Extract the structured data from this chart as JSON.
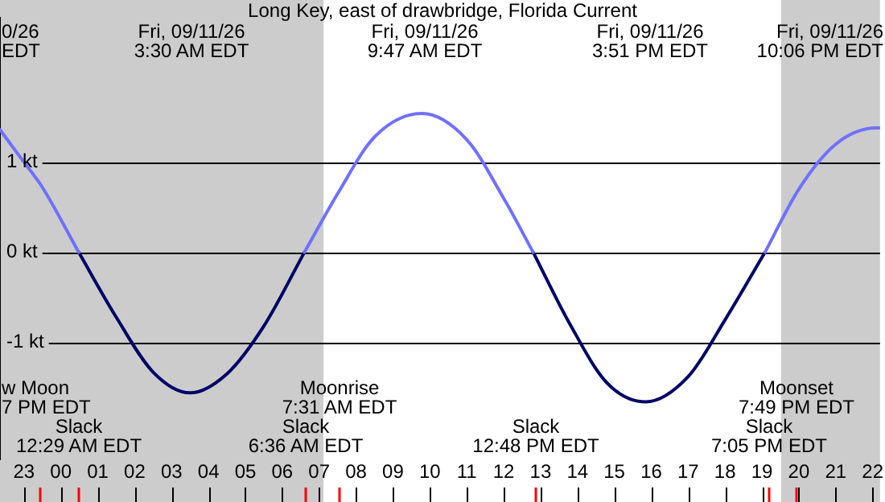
{
  "chart_data": {
    "type": "line",
    "title": "Long Key, east of drawbridge, Florida Current",
    "x": [
      "--09-10T22:21",
      "--09-10T23:00",
      "--09-10T23:30",
      "--09-11T00:29",
      "--09-11T01:30",
      "--09-11T02:30",
      "--09-11T03:30",
      "--09-11T04:30",
      "--09-11T05:30",
      "--09-11T06:36",
      "--09-11T07:30",
      "--09-11T08:30",
      "--09-11T09:47",
      "--09-11T11:00",
      "--09-11T12:00",
      "--09-11T12:48",
      "--09-11T13:48",
      "--09-11T14:48",
      "--09-11T15:51",
      "--09-11T17:00",
      "--09-11T18:00",
      "--09-11T19:05",
      "--09-11T20:00",
      "--09-11T21:00",
      "--09-11T22:06",
      "--09-11T22:12"
    ],
    "series": [
      {
        "color": "#7070ff",
        "values": [
          1.36,
          1.0,
          0.72,
          0,
          null,
          null,
          null,
          null,
          null,
          0,
          0.65,
          1.28,
          1.54,
          1.25,
          0.6,
          0,
          null,
          null,
          null,
          null,
          null,
          0,
          0.7,
          1.2,
          1.38,
          1.38
        ]
      },
      {
        "color": "#000066",
        "values": [
          null,
          null,
          null,
          0,
          -0.72,
          -1.33,
          -1.56,
          -1.35,
          -0.82,
          0,
          null,
          null,
          null,
          null,
          null,
          0,
          -0.8,
          -1.45,
          -1.66,
          -1.38,
          -0.75,
          0,
          null,
          null,
          null,
          null
        ]
      }
    ],
    "xlim": [
      "--09-10T22:21",
      "--09-11T22:12"
    ],
    "xticks": [
      {
        "value": "--09-10T23:00",
        "label": "23"
      },
      {
        "value": "--09-11T00:00",
        "label": "00"
      },
      {
        "value": "--09-11T01:00",
        "label": "01"
      },
      {
        "value": "--09-11T02:00",
        "label": "02"
      },
      {
        "value": "--09-11T03:00",
        "label": "03"
      },
      {
        "value": "--09-11T04:00",
        "label": "04"
      },
      {
        "value": "--09-11T05:00",
        "label": "05"
      },
      {
        "value": "--09-11T06:00",
        "label": "06"
      },
      {
        "value": "--09-11T07:00",
        "label": "07"
      },
      {
        "value": "--09-11T08:00",
        "label": "08"
      },
      {
        "value": "--09-11T09:00",
        "label": "09"
      },
      {
        "value": "--09-11T10:00",
        "label": "10"
      },
      {
        "value": "--09-11T11:00",
        "label": "11"
      },
      {
        "value": "--09-11T12:00",
        "label": "12"
      },
      {
        "value": "--09-11T13:00",
        "label": "13"
      },
      {
        "value": "--09-11T14:00",
        "label": "14"
      },
      {
        "value": "--09-11T15:00",
        "label": "15"
      },
      {
        "value": "--09-11T16:00",
        "label": "16"
      },
      {
        "value": "--09-11T17:00",
        "label": "17"
      },
      {
        "value": "--09-11T18:00",
        "label": "18"
      },
      {
        "value": "--09-11T19:00",
        "label": "19"
      },
      {
        "value": "--09-11T20:00",
        "label": "20"
      },
      {
        "value": "--09-11T21:00",
        "label": "21"
      },
      {
        "value": "--09-11T22:00",
        "label": "22"
      }
    ],
    "ylim": [
      -2.3,
      2.6
    ],
    "yticks": [
      {
        "value": -1,
        "label": "-1 kt"
      },
      {
        "value": 0,
        "label": "0 kt"
      },
      {
        "value": 1,
        "label": "1 kt"
      }
    ],
    "grid": "y",
    "legend": false,
    "marker": "none",
    "line_style": "solid",
    "bands": [
      {
        "axis": "x",
        "from": "--09-10T22:21",
        "to": "--09-11T07:07",
        "color": "#cccccc"
      },
      {
        "axis": "x",
        "from": "--09-11T19:31",
        "to": "--09-11T22:12",
        "color": "#cccccc"
      }
    ],
    "annotations": [
      "0/26\nEDT",
      "Fri, 09/11/26\n3:30 AM EDT",
      "Fri, 09/11/26\n9:47 AM EDT",
      "Fri, 09/11/26\n3:51 PM EDT",
      "Fri, 09/11/26\n10:06 PM EDT",
      "w Moon\n7 PM EDT",
      "Slack\n12:29 AM EDT",
      "Slack\n6:36 AM EDT",
      "Moonrise\n7:31 AM EDT",
      "Slack\n12:48 PM EDT",
      "Slack\n7:05 PM EDT",
      "Moonset\n7:49 PM EDT"
    ]
  }
}
